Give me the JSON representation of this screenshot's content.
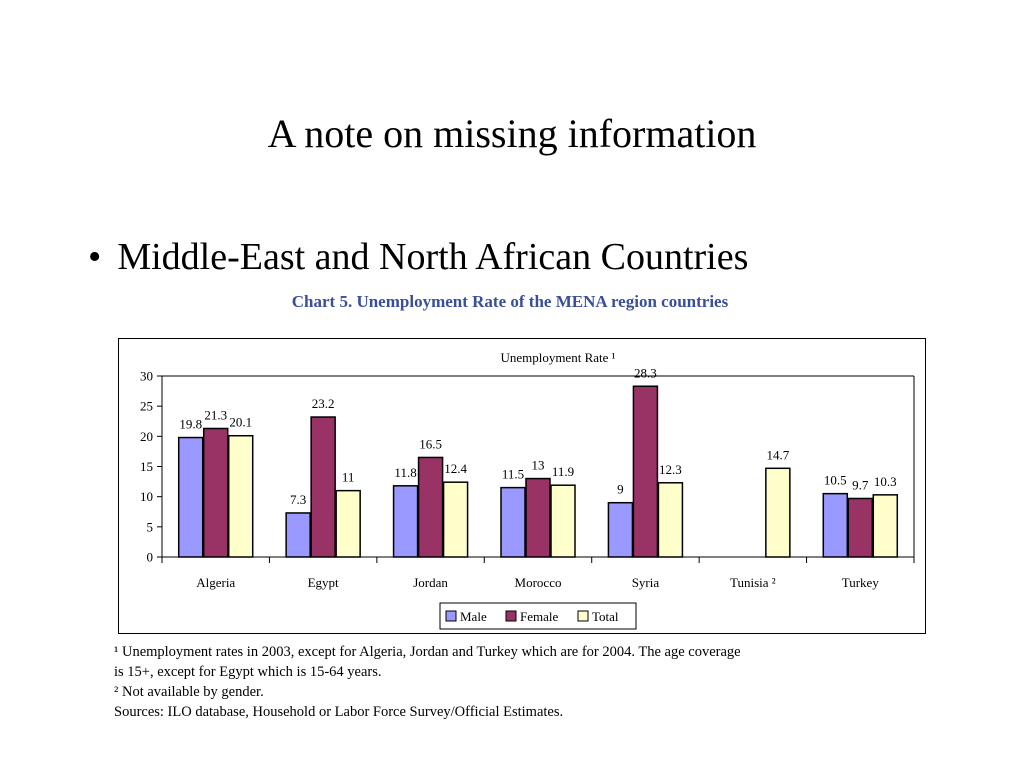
{
  "slide": {
    "title": "A note on missing information",
    "bullet_symbol": "•",
    "bullet_text": "Middle-East and North African Countries"
  },
  "chart_caption": "Chart 5. Unemployment Rate of the MENA region countries",
  "chart_data": {
    "type": "bar",
    "title": "Unemployment Rate ¹",
    "categories": [
      "Algeria",
      "Egypt",
      "Jordan",
      "Morocco",
      "Syria",
      "Tunisia ²",
      "Turkey"
    ],
    "series": [
      {
        "name": "Male",
        "values": [
          19.8,
          7.3,
          11.8,
          11.5,
          9,
          null,
          10.5
        ],
        "color": "#9999ff"
      },
      {
        "name": "Female",
        "values": [
          21.3,
          23.2,
          16.5,
          13,
          28.3,
          null,
          9.7
        ],
        "color": "#993366"
      },
      {
        "name": "Total",
        "values": [
          20.1,
          11,
          12.4,
          11.9,
          12.3,
          14.7,
          10.3
        ],
        "color": "#ffffcc"
      }
    ],
    "ylim": [
      0,
      30
    ],
    "yticks": [
      0,
      5,
      10,
      15,
      20,
      25,
      30
    ],
    "grid": false,
    "legend_position": "bottom"
  },
  "footnotes": [
    "¹ Unemployment rates in 2003, except for Algeria, Jordan and Turkey which are for 2004. The age coverage",
    "is 15+, except for Egypt which is 15-64 years.",
    "² Not available by gender.",
    "Sources: ILO database, Household or Labor Force Survey/Official Estimates."
  ]
}
